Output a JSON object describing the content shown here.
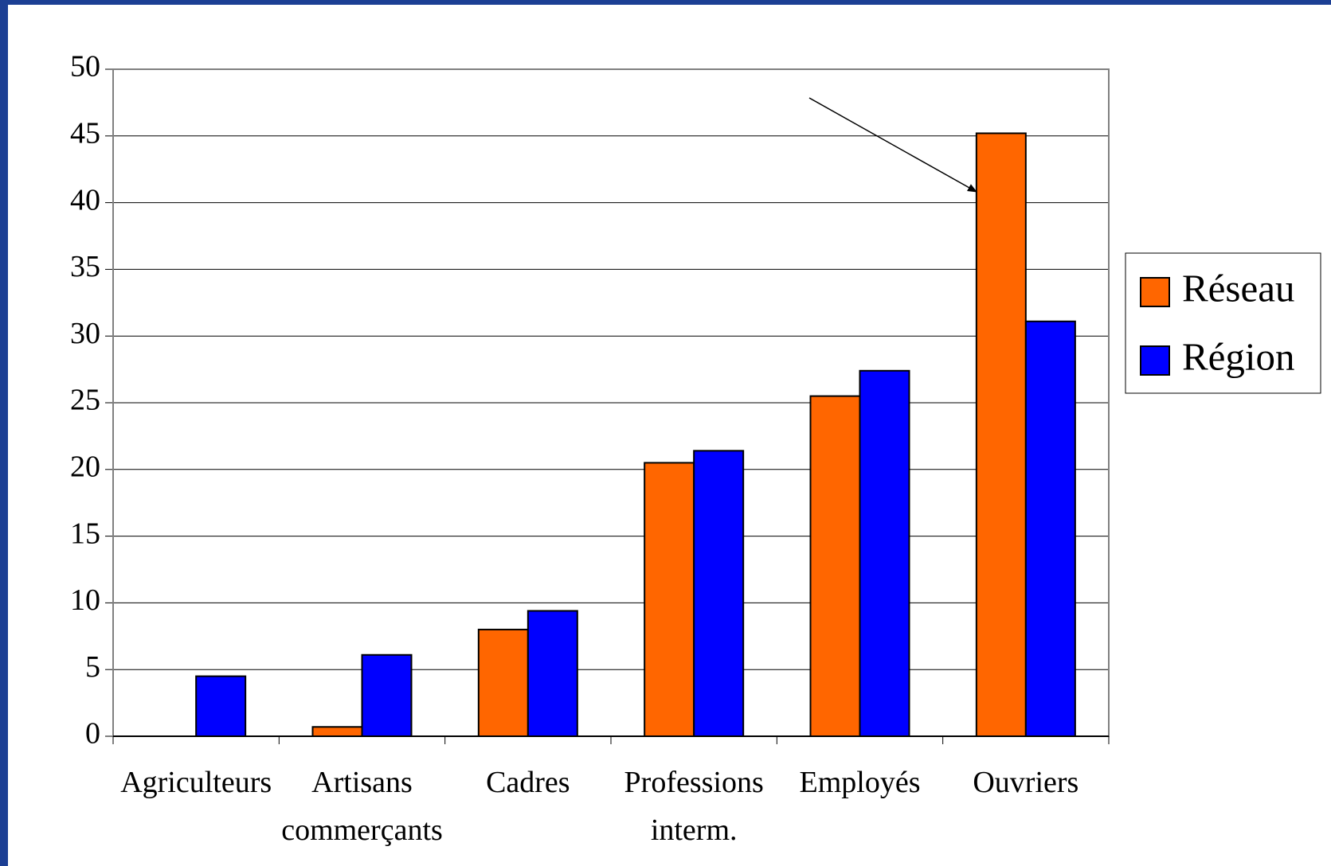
{
  "chart_data": {
    "type": "bar",
    "categories": [
      "Agriculteurs",
      "Artisans\ncommerçants",
      "Cadres",
      "Professions\ninterm.",
      "Employés",
      "Ouvriers"
    ],
    "series": [
      {
        "name": "Réseau",
        "color": "#ff6600",
        "values": [
          0,
          0.7,
          8,
          20.5,
          25.5,
          45.2
        ]
      },
      {
        "name": "Région",
        "color": "#0000ff",
        "values": [
          4.5,
          6.1,
          9.4,
          21.4,
          27.4,
          31.1
        ]
      }
    ],
    "ylim": [
      0,
      50
    ],
    "yticks": [
      0,
      5,
      10,
      15,
      20,
      25,
      30,
      35,
      40,
      45,
      50
    ],
    "grid": true,
    "legend": "right"
  }
}
